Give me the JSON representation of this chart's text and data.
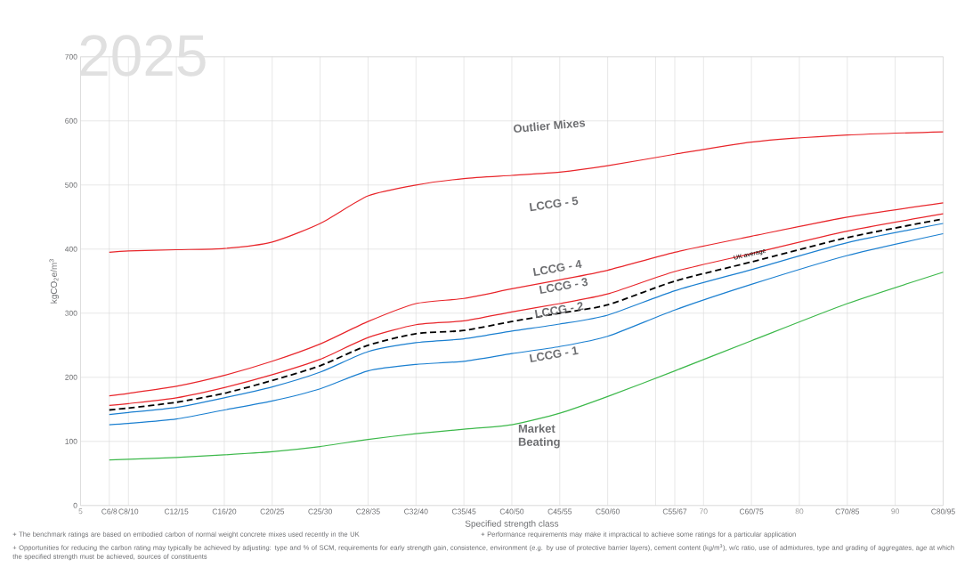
{
  "chart_data": {
    "type": "line",
    "title": "2025",
    "xlabel": "Specified strength class",
    "ylabel": "kgCO$_{2}$e/m$^{3}$",
    "x": [
      8,
      10,
      15,
      20,
      25,
      30,
      35,
      40,
      45,
      50,
      55,
      60,
      67,
      75,
      85,
      95
    ],
    "xlim": [
      5,
      95
    ],
    "ylim": [
      0,
      700
    ],
    "yticks": [
      0,
      100,
      200,
      300,
      400,
      500,
      600,
      700
    ],
    "xticks": [
      5,
      {
        "value": 8,
        "label": "C6/8"
      },
      {
        "value": 10,
        "label": "C8/10"
      },
      {
        "value": 15,
        "label": "C12/15"
      },
      {
        "value": 20,
        "label": "C16/20"
      },
      {
        "value": 25,
        "label": "C20/25"
      },
      {
        "value": 30,
        "label": "C25/30"
      },
      {
        "value": 35,
        "label": "C28/35"
      },
      {
        "value": 40,
        "label": "C32/40"
      },
      {
        "value": 45,
        "label": "C35/45"
      },
      {
        "value": 50,
        "label": "C40/50"
      },
      {
        "value": 55,
        "label": "C45/55"
      },
      {
        "value": 60,
        "label": "C50/60"
      },
      {
        "value": 65,
        "label": null
      },
      {
        "value": 67,
        "label": "C55/67"
      },
      70,
      {
        "value": 75,
        "label": "C60/75"
      },
      80,
      {
        "value": 85,
        "label": "C70/85"
      },
      90,
      {
        "value": 95,
        "label": "C80/95"
      }
    ],
    "grid": true,
    "series": [
      {
        "color": "#e8252a",
        "line_style": "solid",
        "values": [
          395,
          397,
          399,
          401,
          411,
          440,
          483,
          500,
          510,
          515,
          520,
          530,
          548,
          567,
          578,
          583
        ]
      },
      {
        "color": "#e8252a",
        "line_style": "solid",
        "values": [
          171,
          175,
          186,
          203,
          225,
          252,
          287,
          315,
          323,
          338,
          352,
          367,
          395,
          420,
          450,
          472
        ]
      },
      {
        "color": "#e8252a",
        "line_style": "solid",
        "values": [
          156,
          159,
          168,
          184,
          204,
          228,
          262,
          282,
          288,
          302,
          315,
          330,
          365,
          393,
          428,
          455
        ]
      },
      {
        "name": "UK average",
        "color": "#000000",
        "line_style": "dashed",
        "values": [
          149,
          152,
          161,
          175,
          195,
          218,
          250,
          268,
          273,
          287,
          300,
          313,
          350,
          380,
          418,
          447
        ]
      },
      {
        "color": "#1a7fd0",
        "line_style": "solid",
        "values": [
          142,
          145,
          153,
          168,
          185,
          208,
          240,
          254,
          260,
          272,
          283,
          297,
          335,
          368,
          410,
          440
        ]
      },
      {
        "color": "#1a7fd0",
        "line_style": "solid",
        "values": [
          126,
          128,
          135,
          149,
          163,
          182,
          210,
          220,
          225,
          237,
          248,
          264,
          305,
          345,
          390,
          424
        ]
      },
      {
        "color": "#3cb84a",
        "line_style": "solid",
        "values": [
          71,
          72,
          75,
          79,
          84,
          92,
          103,
          112,
          119,
          126,
          144,
          170,
          210,
          257,
          315,
          364
        ]
      }
    ],
    "annotations": [
      "Outlier Mixes",
      "LCCG - 5",
      "LCCG - 4",
      "LCCG - 3",
      "LCCG - 2",
      "LCCG - 1",
      "Market Beating",
      "+ The benchmark ratings are based on embodied carbon of normal weight concrete mixes used recently in the UK",
      "+ Performance requirements may make it impractical to achieve some ratings for a particular application",
      "+ Opportunities for reducing the carbon rating may typically be achieved by adjusting: type and % of SCM, requirements for early strength gain, consistence, environment (e.g. by use of protective barrier layers), cement content (kg/m$^{3}$), w/c ratio, use of admixtures, type and grading of aggregates, age at which the specified strength must be achieved, sources of constituents"
    ]
  }
}
